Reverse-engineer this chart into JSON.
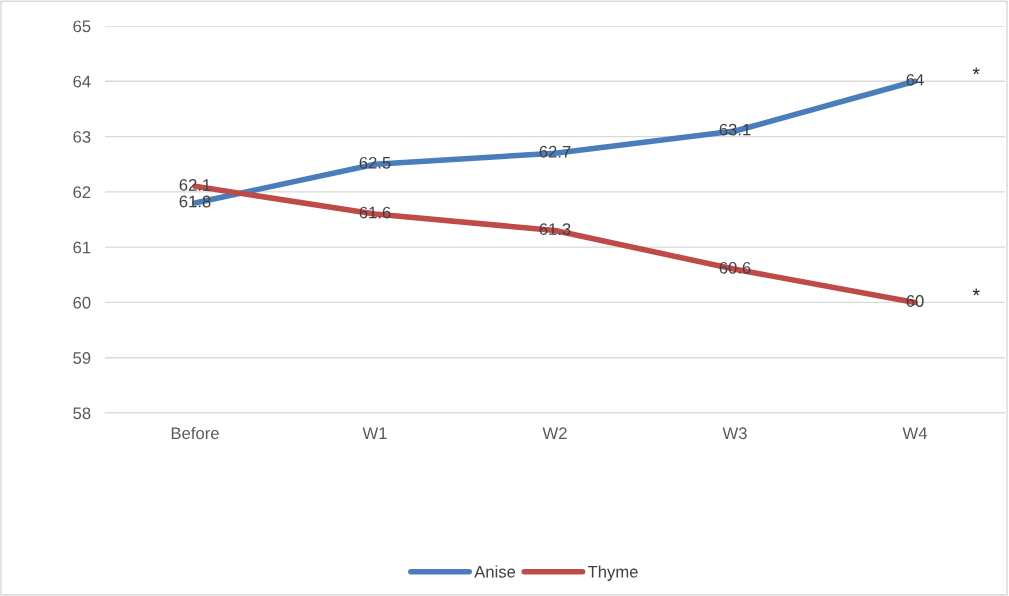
{
  "chart_data": {
    "type": "line",
    "categories": [
      "Before",
      "W1",
      "W2",
      "W3",
      "W4"
    ],
    "series": [
      {
        "name": "Anise",
        "color": "#4a7ebb",
        "values": [
          61.8,
          62.5,
          62.7,
          63.1,
          64
        ]
      },
      {
        "name": "Thyme",
        "color": "#be4b48",
        "values": [
          62.1,
          61.6,
          61.3,
          60.6,
          60
        ]
      }
    ],
    "ylim": [
      58,
      65
    ],
    "yticks": [
      58,
      59,
      60,
      61,
      62,
      63,
      64,
      65
    ],
    "grid": "y",
    "legend": "bottom",
    "data_labels": true,
    "marker": "none",
    "line_style": "solid",
    "annotations": [
      "*",
      "*"
    ]
  }
}
